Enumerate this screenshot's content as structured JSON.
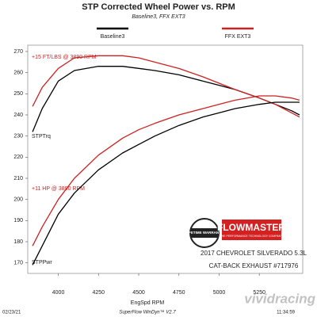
{
  "chart_data": {
    "type": "line",
    "title": "STP Corrected Wheel Power vs. RPM",
    "subtitle": "Baseline3, FFX EXT3",
    "x_label": "EngSpd  RPM",
    "x": [
      3840,
      3900,
      4000,
      4100,
      4250,
      4400,
      4500,
      4600,
      4750,
      4900,
      5000,
      5100,
      5250,
      5350,
      5450,
      5500
    ],
    "series": [
      {
        "name": "Baseline3",
        "color": "#000000",
        "torque": [
          232,
          243,
          256,
          261,
          263,
          263,
          262,
          261,
          259,
          256,
          254,
          252,
          248,
          245,
          242,
          240
        ],
        "power": [
          169,
          178,
          193,
          203,
          214,
          222,
          226,
          230,
          235,
          239,
          241,
          243,
          245,
          246,
          246,
          246
        ]
      },
      {
        "name": "FFX EXT3",
        "color": "#cc2222",
        "torque": [
          244,
          253,
          262,
          267,
          268,
          268,
          267,
          265,
          262,
          258,
          255,
          252,
          248,
          245,
          241,
          239
        ],
        "power": [
          178,
          187,
          200,
          210,
          221,
          229,
          233,
          236,
          240,
          243,
          245,
          247,
          249,
          249,
          248,
          247
        ]
      }
    ],
    "curve_labels": {
      "torque": "STPTrq",
      "power": "STPPwr"
    },
    "annotations": [
      "+15 FT/LBS @ 3890 RPM",
      "+11 HP @ 3890 RPM"
    ],
    "xlim": [
      3810,
      5520
    ],
    "ylim": [
      165,
      273
    ],
    "xticks": [
      4000,
      4250,
      4500,
      4750,
      5000,
      5250
    ],
    "yticks": [
      170,
      180,
      190,
      200,
      210,
      220,
      230,
      240,
      250,
      260,
      270
    ],
    "footer": {
      "date": "02/23/21",
      "software": "SuperFlow WinDyn™ V2.7",
      "time": "11:34:59"
    },
    "badge": {
      "warranty": "LIFETIME WARRANTY",
      "brand": "FLOWMASTER",
      "tagline": "THE PERFORMANCE TECHNOLOGY COMPANY",
      "vehicle": "2017 CHEVROLET SILVERADO 5.3L",
      "product": "CAT-BACK EXHAUST #717976"
    },
    "watermark": "vividracing"
  }
}
